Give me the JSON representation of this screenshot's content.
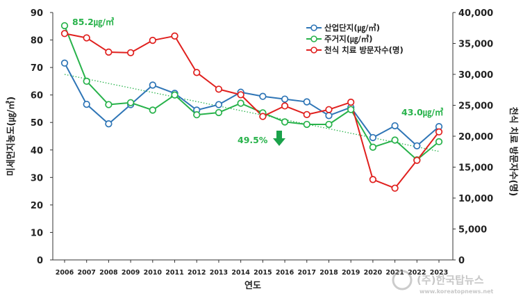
{
  "chart_data": {
    "type": "line",
    "xlabel": "연도",
    "ylabel": "미세먼지농도(㎍/㎥)",
    "y2label": "천식 치료 방문자수(명)",
    "x": [
      "2006",
      "2007",
      "2008",
      "2009",
      "2010",
      "2011",
      "2012",
      "2013",
      "2014",
      "2015",
      "2016",
      "2017",
      "2018",
      "2019",
      "2020",
      "2021",
      "2022",
      "2023"
    ],
    "ylim": [
      0,
      90
    ],
    "yticks": [
      "0",
      "10",
      "20",
      "30",
      "40",
      "50",
      "60",
      "70",
      "80",
      "90"
    ],
    "y2lim": [
      0,
      40000
    ],
    "y2ticks": [
      "0",
      "5,000",
      "10,000",
      "15,000",
      "20,000",
      "25,000",
      "30,000",
      "35,000",
      "40,000"
    ],
    "grid": false,
    "legend_position": "top-right",
    "series": [
      {
        "name": "산업단지(㎍/㎥)",
        "axis": "left",
        "color": "#2e75b6",
        "values": [
          71.6,
          56.6,
          49.5,
          56.5,
          63.6,
          60.6,
          54.5,
          56.5,
          61.0,
          59.5,
          58.5,
          57.5,
          52.5,
          55.5,
          44.5,
          48.8,
          41.5,
          48.5
        ]
      },
      {
        "name": "주거지(㎍/㎥)",
        "axis": "left",
        "color": "#27b24a",
        "values": [
          85.2,
          65.0,
          56.5,
          57.2,
          54.5,
          60.0,
          52.8,
          53.6,
          57.0,
          53.5,
          50.2,
          49.3,
          49.3,
          54.7,
          41.0,
          43.6,
          36.4,
          43.0
        ]
      },
      {
        "name": "천식 치료 방문자수(명)",
        "axis": "right",
        "color": "#e0201e",
        "values": [
          36600,
          35900,
          33600,
          33500,
          35500,
          36200,
          30300,
          27600,
          26700,
          23200,
          24900,
          23500,
          24300,
          25500,
          13000,
          11600,
          16100,
          20700
        ]
      }
    ],
    "annotations": [
      {
        "text": "85.2㎍/㎥",
        "color": "#27b24a"
      },
      {
        "text": "43.0㎍/㎥",
        "color": "#27b24a"
      },
      {
        "text": "49.5%",
        "color": "#27b24a"
      }
    ],
    "colors": {
      "industrial": "#2e75b6",
      "residential": "#27b24a",
      "asthma": "#e0201e",
      "trend": "#27b24a",
      "arrow": "#1aa24a"
    }
  },
  "watermark": {
    "logo_text": "(주)한국탑뉴스",
    "url": "www.koreatopnews.net"
  }
}
